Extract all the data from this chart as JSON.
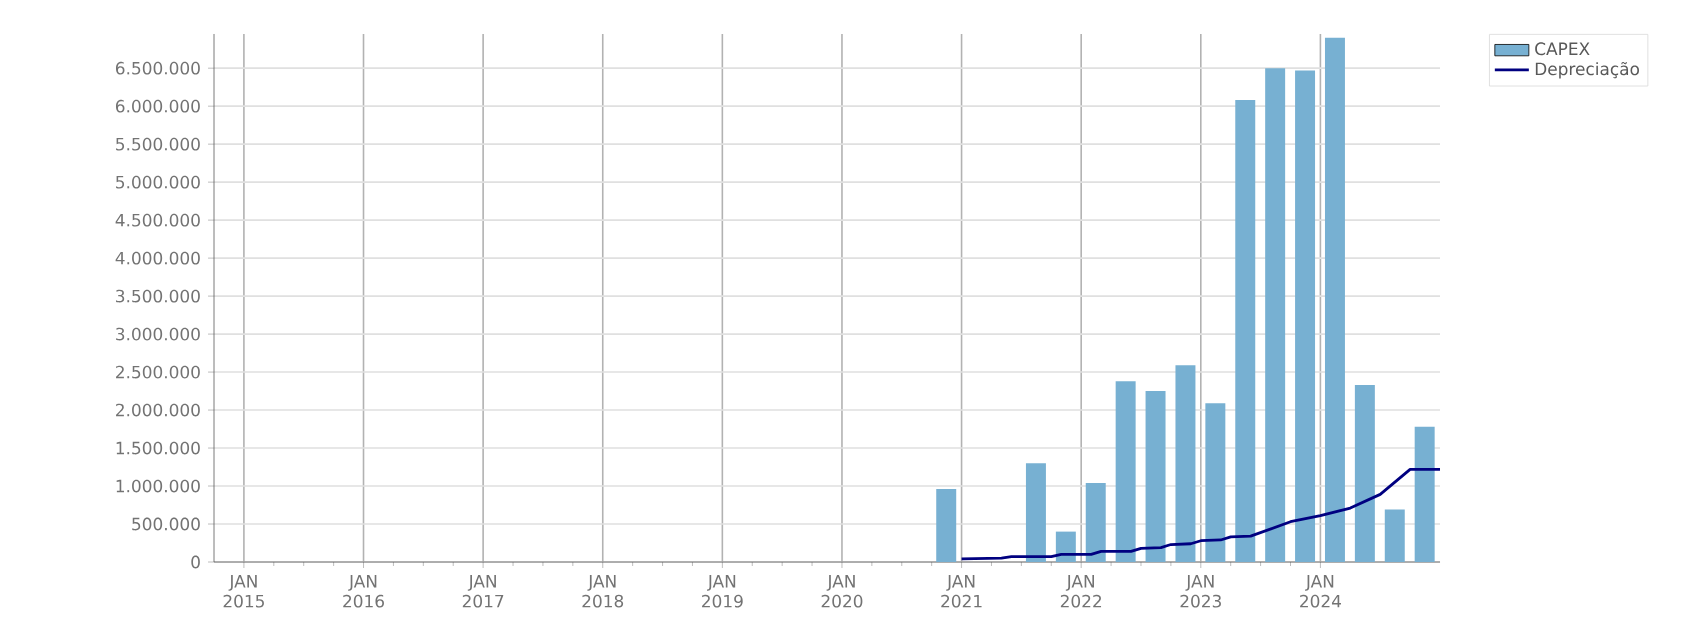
{
  "chart_data": {
    "type": "bar",
    "xlim": [
      "2014-10",
      "2025-01"
    ],
    "xticks": [
      {
        "value": "2015-01",
        "label": "JAN 2015"
      },
      {
        "value": "2016-01",
        "label": "JAN 2016"
      },
      {
        "value": "2017-01",
        "label": "JAN 2017"
      },
      {
        "value": "2018-01",
        "label": "JAN 2018"
      },
      {
        "value": "2019-01",
        "label": "JAN 2019"
      },
      {
        "value": "2020-01",
        "label": "JAN 2020"
      },
      {
        "value": "2021-01",
        "label": "JAN 2021"
      },
      {
        "value": "2022-01",
        "label": "JAN 2022"
      },
      {
        "value": "2023-01",
        "label": "JAN 2023"
      },
      {
        "value": "2024-01",
        "label": "JAN 2024"
      }
    ],
    "ylim": [
      0,
      6950000
    ],
    "yticks": [
      0,
      {
        "value": 500000,
        "label": "500.000"
      },
      {
        "value": 1000000,
        "label": "1.000.000"
      },
      {
        "value": 1500000,
        "label": "1.500.000"
      },
      {
        "value": 2000000,
        "label": "2.000.000"
      },
      {
        "value": 2500000,
        "label": "2.500.000"
      },
      {
        "value": 3000000,
        "label": "3.000.000"
      },
      {
        "value": 3500000,
        "label": "3.500.000"
      },
      {
        "value": 4000000,
        "label": "4.000.000"
      },
      {
        "value": 4500000,
        "label": "4.500.000"
      },
      {
        "value": 5000000,
        "label": "5.000.000"
      },
      {
        "value": 5500000,
        "label": "5.500.000"
      },
      {
        "value": 6000000,
        "label": "6.000.000"
      },
      {
        "value": 6500000,
        "label": "6.500.000"
      }
    ],
    "grid": true,
    "legend": "top right",
    "series": [
      {
        "name": "CAPEX",
        "color": "#77b0d2",
        "x": [
          "2020-11-15",
          "2021-02-15",
          "2021-05-15",
          "2021-08-15",
          "2021-11-15",
          "2022-02-15",
          "2022-05-15",
          "2022-08-15",
          "2022-11-15",
          "2023-02-15",
          "2023-05-15",
          "2023-08-15",
          "2023-11-15",
          "2024-02-15",
          "2024-05-15",
          "2024-08-15",
          "2024-11-15"
        ],
        "values": [
          960000,
          0,
          0,
          1300000,
          400000,
          1040000,
          2380000,
          2250000,
          2590000,
          2090000,
          6080000,
          6500000,
          6470000,
          6900000,
          2330000,
          690000,
          1780000
        ]
      },
      {
        "name": "Depreciação",
        "type": "line",
        "color": "#000080",
        "x": [
          "2021-01",
          "2021-05",
          "2021-06",
          "2021-10",
          "2021-11",
          "2022-02",
          "2022-03",
          "2022-06",
          "2022-07",
          "2022-09",
          "2022-10",
          "2022-12",
          "2023-01",
          "2023-03",
          "2023-04",
          "2023-06",
          "2023-10",
          "2024-01",
          "2024-04",
          "2024-07",
          "2024-10",
          "2025-01"
        ],
        "values": [
          40000,
          50000,
          70000,
          70000,
          100000,
          100000,
          140000,
          140000,
          180000,
          190000,
          230000,
          240000,
          280000,
          290000,
          330000,
          340000,
          530000,
          610000,
          710000,
          890000,
          1220000,
          1220000
        ]
      }
    ]
  }
}
